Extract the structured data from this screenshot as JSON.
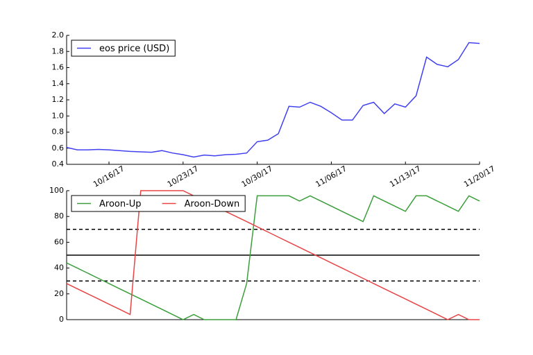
{
  "chart_data": [
    {
      "type": "line",
      "x": [
        "2017-10-12",
        "2017-10-13",
        "2017-10-14",
        "2017-10-15",
        "2017-10-16",
        "2017-10-17",
        "2017-10-18",
        "2017-10-19",
        "2017-10-20",
        "2017-10-21",
        "2017-10-22",
        "2017-10-23",
        "2017-10-24",
        "2017-10-25",
        "2017-10-26",
        "2017-10-27",
        "2017-10-28",
        "2017-10-29",
        "2017-10-30",
        "2017-10-31",
        "2017-11-01",
        "2017-11-02",
        "2017-11-03",
        "2017-11-04",
        "2017-11-05",
        "2017-11-06",
        "2017-11-07",
        "2017-11-08",
        "2017-11-09",
        "2017-11-10",
        "2017-11-11",
        "2017-11-12",
        "2017-11-13",
        "2017-11-14",
        "2017-11-15",
        "2017-11-16",
        "2017-11-17",
        "2017-11-18",
        "2017-11-19",
        "2017-11-20"
      ],
      "series": [
        {
          "name": "eos price (USD)",
          "color": "#4040f0",
          "values": [
            0.61,
            0.58,
            0.58,
            0.585,
            0.58,
            0.57,
            0.56,
            0.555,
            0.55,
            0.57,
            0.54,
            0.52,
            0.49,
            0.515,
            0.505,
            0.52,
            0.525,
            0.54,
            0.68,
            0.7,
            0.78,
            1.12,
            1.11,
            1.17,
            1.12,
            1.04,
            0.95,
            0.95,
            1.13,
            1.17,
            1.03,
            1.15,
            1.11,
            1.25,
            1.73,
            1.64,
            1.61,
            1.7,
            1.91,
            1.9
          ]
        }
      ],
      "xlim": [
        "2017-10-12",
        "2017-11-20"
      ],
      "xticks": [
        {
          "value": "2017-10-16",
          "label": "10/16/17"
        },
        {
          "value": "2017-10-23",
          "label": "10/23/17"
        },
        {
          "value": "2017-10-30",
          "label": "10/30/17"
        },
        {
          "value": "2017-11-06",
          "label": "11/06/17"
        },
        {
          "value": "2017-11-13",
          "label": "11/13/17"
        },
        {
          "value": "2017-11-20",
          "label": "11/20/17"
        }
      ],
      "ylim": [
        0.4,
        2.0
      ],
      "yticks": [
        0.4,
        0.6,
        0.8,
        {
          "value": 1,
          "label": "1.0"
        },
        1.2,
        1.4,
        1.6,
        1.8,
        {
          "value": 2,
          "label": "2.0"
        }
      ],
      "legend": "upper left"
    },
    {
      "type": "line",
      "x": [
        "2017-10-12",
        "2017-10-13",
        "2017-10-14",
        "2017-10-15",
        "2017-10-16",
        "2017-10-17",
        "2017-10-18",
        "2017-10-19",
        "2017-10-20",
        "2017-10-21",
        "2017-10-22",
        "2017-10-23",
        "2017-10-24",
        "2017-10-25",
        "2017-10-26",
        "2017-10-27",
        "2017-10-28",
        "2017-10-29",
        "2017-10-30",
        "2017-10-31",
        "2017-11-01",
        "2017-11-02",
        "2017-11-03",
        "2017-11-04",
        "2017-11-05",
        "2017-11-06",
        "2017-11-07",
        "2017-11-08",
        "2017-11-09",
        "2017-11-10",
        "2017-11-11",
        "2017-11-12",
        "2017-11-13",
        "2017-11-14",
        "2017-11-15",
        "2017-11-16",
        "2017-11-17",
        "2017-11-18",
        "2017-11-19",
        "2017-11-20"
      ],
      "series": [
        {
          "name": "Aroon-Up",
          "color": "#3a9e3a",
          "values": [
            44,
            40,
            36,
            32,
            28,
            24,
            20,
            16,
            12,
            8,
            4,
            0,
            4,
            0,
            0,
            0,
            0,
            28,
            96,
            96,
            96,
            96,
            92,
            96,
            92,
            88,
            84,
            80,
            76,
            96,
            92,
            88,
            84,
            96,
            96,
            92,
            88,
            84,
            96,
            92
          ]
        },
        {
          "name": "Aroon-Down",
          "color": "#e84444",
          "values": [
            28,
            24,
            20,
            16,
            12,
            8,
            4,
            100,
            100,
            100,
            100,
            100,
            96,
            92,
            88,
            84,
            80,
            76,
            72,
            68,
            64,
            60,
            56,
            52,
            48,
            44,
            40,
            36,
            32,
            28,
            24,
            20,
            16,
            12,
            8,
            4,
            0,
            4,
            0,
            0
          ]
        }
      ],
      "xlim": [
        "2017-10-12",
        "2017-11-20"
      ],
      "ylim": [
        0,
        100
      ],
      "yticks": [
        0,
        20,
        40,
        60,
        80,
        100
      ],
      "hlines": [
        {
          "value": 70,
          "style": "dashed"
        },
        {
          "value": 50,
          "style": "solid"
        },
        {
          "value": 30,
          "style": "dashed"
        }
      ],
      "legend": "upper left"
    }
  ]
}
